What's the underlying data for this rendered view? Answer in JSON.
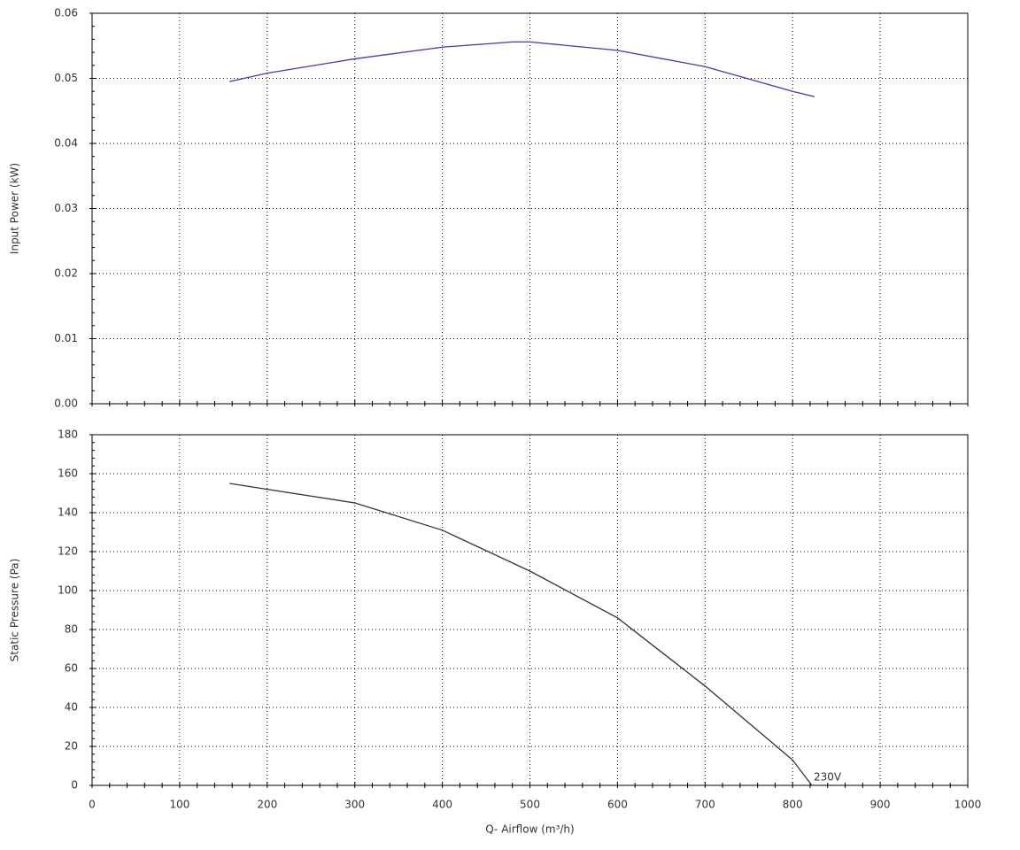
{
  "chart_data": [
    {
      "type": "line",
      "y_label": "Input Power (kW)",
      "x": [
        157,
        200,
        300,
        400,
        480,
        500,
        600,
        700,
        800,
        825
      ],
      "series": [
        {
          "color": "#3c3cb4",
          "values": [
            0.0495,
            0.0508,
            0.053,
            0.0548,
            0.0556,
            0.0556,
            0.0543,
            0.0518,
            0.048,
            0.0472
          ]
        }
      ],
      "xlim": [
        0,
        1000
      ],
      "ylim": [
        0,
        0.06
      ],
      "yticks": [
        {
          "value": 0,
          "label": "0.00"
        },
        0.01,
        0.02,
        0.03,
        0.04,
        0.05,
        0.06
      ],
      "grid": true
    },
    {
      "type": "line",
      "y_label": "Static Pressure (Pa)",
      "x_label": "Q- Airflow (m³/h)",
      "x": [
        157,
        200,
        300,
        400,
        500,
        600,
        700,
        800,
        822
      ],
      "series": [
        {
          "name": "230V",
          "color": "#333333",
          "values": [
            155,
            152,
            145,
            131,
            110,
            86,
            51,
            13,
            0
          ]
        }
      ],
      "xlim": [
        0,
        1000
      ],
      "xticks": [
        0,
        100,
        200,
        300,
        400,
        500,
        600,
        700,
        800,
        900,
        1000
      ],
      "ylim": [
        0,
        180
      ],
      "yticks": [
        0,
        20,
        40,
        60,
        80,
        100,
        120,
        140,
        160,
        180
      ],
      "grid": true
    }
  ]
}
